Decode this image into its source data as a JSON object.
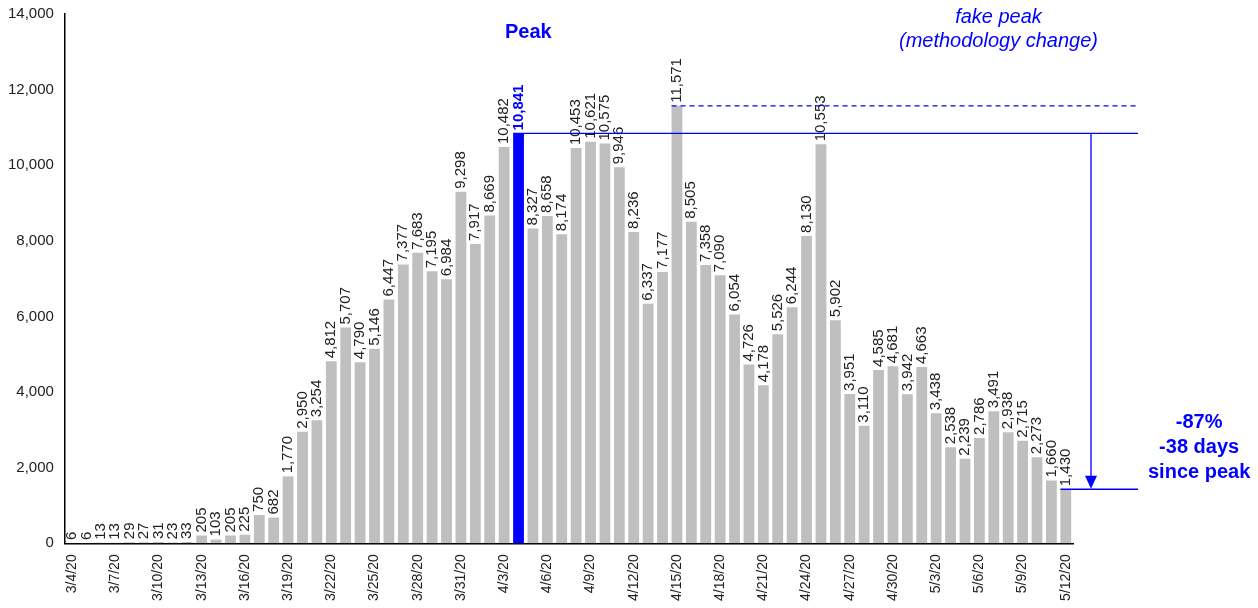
{
  "chart_data": {
    "type": "bar",
    "categories": [
      "3/4/20",
      null,
      null,
      "3/7/20",
      null,
      null,
      "3/10/20",
      null,
      null,
      "3/13/20",
      null,
      null,
      "3/16/20",
      null,
      null,
      "3/19/20",
      null,
      null,
      "3/22/20",
      null,
      null,
      "3/25/20",
      null,
      null,
      "3/28/20",
      null,
      null,
      "3/31/20",
      null,
      null,
      "4/3/20",
      null,
      null,
      "4/6/20",
      null,
      null,
      "4/9/20",
      null,
      null,
      "4/12/20",
      null,
      null,
      "4/15/20",
      null,
      null,
      "4/18/20",
      null,
      null,
      "4/21/20",
      null,
      null,
      "4/24/20",
      null,
      null,
      "4/27/20",
      null,
      null,
      "4/30/20",
      null,
      null,
      "5/3/20",
      null,
      null,
      "5/6/20",
      null,
      null,
      "5/9/20",
      null,
      null,
      "5/12/20"
    ],
    "values": [
      6,
      6,
      13,
      13,
      29,
      27,
      31,
      23,
      33,
      205,
      103,
      205,
      225,
      750,
      682,
      1770,
      2950,
      3254,
      4812,
      5707,
      4790,
      5146,
      6447,
      7377,
      7683,
      7195,
      6984,
      9298,
      7917,
      8669,
      10482,
      10841,
      8327,
      8658,
      8174,
      10453,
      10621,
      10575,
      9946,
      8236,
      6337,
      7177,
      11571,
      8505,
      7358,
      7090,
      6054,
      4726,
      4178,
      5526,
      6244,
      8130,
      10553,
      5902,
      3951,
      3110,
      4585,
      4681,
      3942,
      4663,
      3438,
      2538,
      2239,
      2786,
      3491,
      2938,
      2715,
      2273,
      1660,
      1430
    ],
    "color": "#bfbfbf",
    "colors": [
      "#bfbfbf",
      "#bfbfbf",
      "#bfbfbf",
      "#bfbfbf",
      "#bfbfbf",
      "#bfbfbf",
      "#bfbfbf",
      "#bfbfbf",
      "#bfbfbf",
      "#bfbfbf",
      "#bfbfbf",
      "#bfbfbf",
      "#bfbfbf",
      "#bfbfbf",
      "#bfbfbf",
      "#bfbfbf",
      "#bfbfbf",
      "#bfbfbf",
      "#bfbfbf",
      "#bfbfbf",
      "#bfbfbf",
      "#bfbfbf",
      "#bfbfbf",
      "#bfbfbf",
      "#bfbfbf",
      "#bfbfbf",
      "#bfbfbf",
      "#bfbfbf",
      "#bfbfbf",
      "#bfbfbf",
      "#bfbfbf",
      "#0000ff",
      "#bfbfbf",
      "#bfbfbf",
      "#bfbfbf",
      "#bfbfbf",
      "#bfbfbf",
      "#bfbfbf",
      "#bfbfbf",
      "#bfbfbf",
      "#bfbfbf",
      "#bfbfbf",
      "#bfbfbf",
      "#bfbfbf",
      "#bfbfbf",
      "#bfbfbf",
      "#bfbfbf",
      "#bfbfbf",
      "#bfbfbf",
      "#bfbfbf",
      "#bfbfbf",
      "#bfbfbf",
      "#bfbfbf",
      "#bfbfbf",
      "#bfbfbf",
      "#bfbfbf",
      "#bfbfbf",
      "#bfbfbf",
      "#bfbfbf",
      "#bfbfbf",
      "#bfbfbf",
      "#bfbfbf",
      "#bfbfbf",
      "#bfbfbf",
      "#bfbfbf",
      "#bfbfbf",
      "#bfbfbf",
      "#bfbfbf",
      "#bfbfbf",
      "#bfbfbf"
    ],
    "value_labels": [
      "6",
      "6",
      "13",
      "13",
      "29",
      "27",
      "31",
      "23",
      "33",
      "205",
      "103",
      "205",
      "225",
      "750",
      "682",
      "1,770",
      "2,950",
      "3,254",
      "4,812",
      "5,707",
      "4,790",
      "5,146",
      "6,447",
      "7,377",
      "7,683",
      "7,195",
      "6,984",
      "9,298",
      "7,917",
      "8,669",
      "10,482",
      "10,841",
      "8,327",
      "8,658",
      "8,174",
      "10,453",
      "10,621",
      "10,575",
      "9,946",
      "8,236",
      "6,337",
      "7,177",
      "11,571",
      "8,505",
      "7,358",
      "7,090",
      "6,054",
      "4,726",
      "4,178",
      "5,526",
      "6,244",
      "8,130",
      "10,553",
      "5,902",
      "3,951",
      "3,110",
      "4,585",
      "4,681",
      "3,942",
      "4,663",
      "3,438",
      "2,538",
      "2,239",
      "2,786",
      "3,491",
      "2,938",
      "2,715",
      "2,273",
      "1,660",
      "1,430"
    ],
    "ylim": [
      0,
      14000
    ],
    "yticks": [
      {
        "value": 0,
        "label": "0"
      },
      {
        "value": 2000,
        "label": "2,000"
      },
      {
        "value": 4000,
        "label": "4,000"
      },
      {
        "value": 6000,
        "label": "6,000"
      },
      {
        "value": 8000,
        "label": "8,000"
      },
      {
        "value": 10000,
        "label": "10,000"
      },
      {
        "value": 12000,
        "label": "12,000"
      },
      {
        "value": 14000,
        "label": "14,000"
      }
    ],
    "grid": false,
    "legend": false,
    "ref_lines": [
      {
        "axis": "y",
        "value": 10841,
        "color": "#0000ff",
        "line_style": "solid"
      },
      {
        "axis": "y",
        "value": 11571,
        "color": "#0000ff",
        "line_style": "dashed"
      },
      {
        "axis": "y",
        "value": 1430,
        "color": "#0000ff",
        "line_style": "solid",
        "label": "-87%\n-38 days\nsince peak"
      }
    ],
    "annotations": [
      "Peak",
      "fake peak\n(methodology change)"
    ]
  }
}
